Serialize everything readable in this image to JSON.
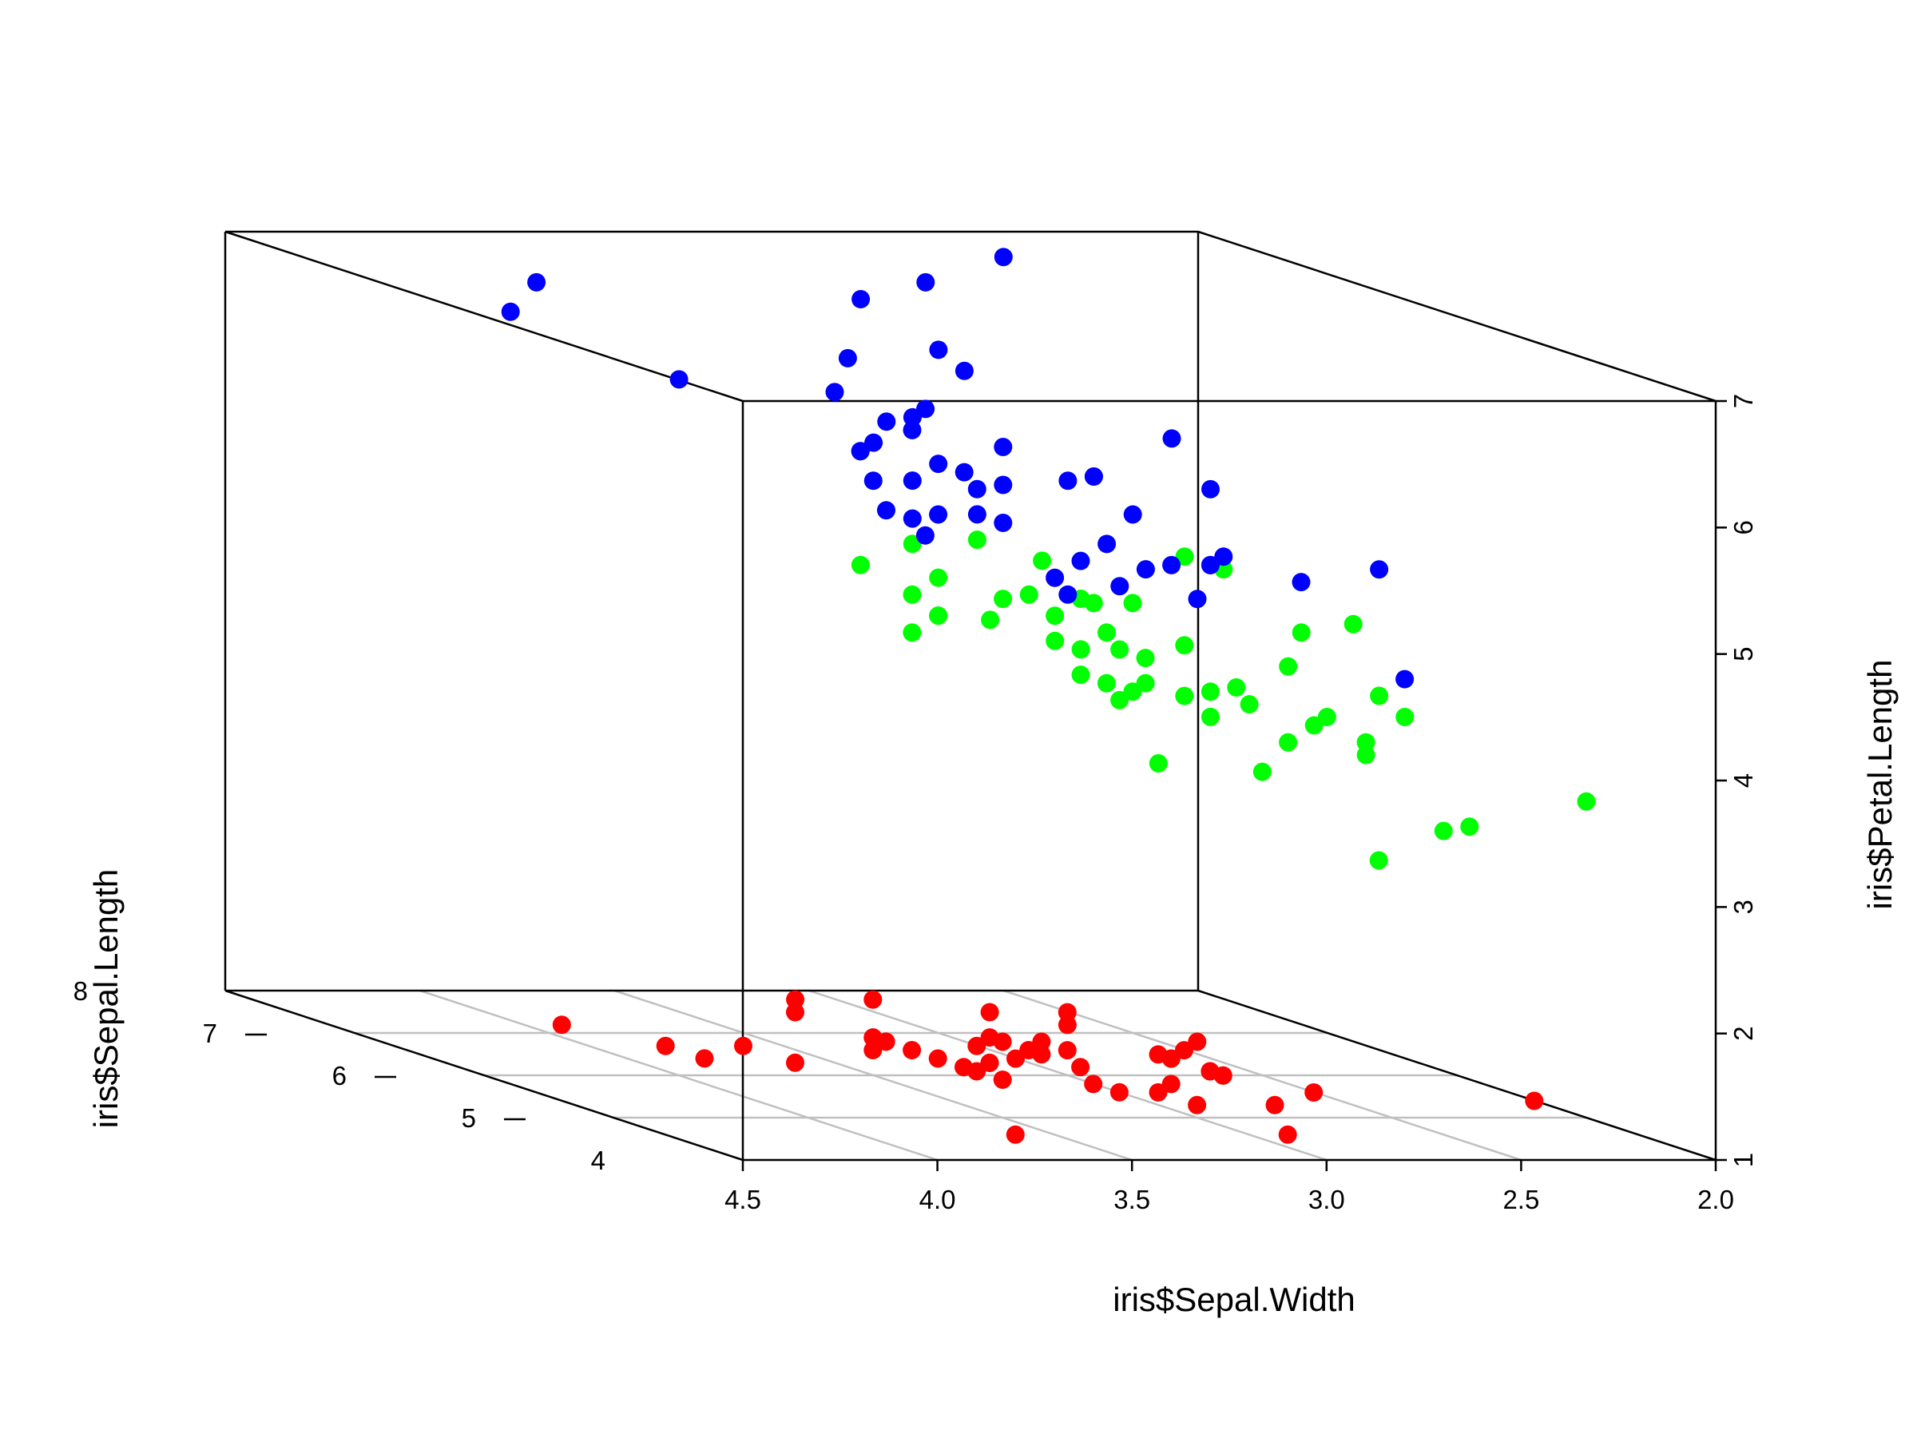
{
  "chart_data": {
    "type": "scatter",
    "subtype": "3d-scatter",
    "title": "",
    "xlabel": "iris$Sepal.Width",
    "ylabel": "iris$Sepal.Length",
    "zlabel": "iris$Petal.Length",
    "xlim": [
      2.0,
      4.5
    ],
    "ylim": [
      4,
      8
    ],
    "zlim": [
      1,
      7
    ],
    "x_ticks": [
      "4.5",
      "4.0",
      "3.5",
      "3.0",
      "2.5",
      "2.0"
    ],
    "y_ticks": [
      "4",
      "5",
      "6",
      "7",
      "8"
    ],
    "z_ticks": [
      "1",
      "2",
      "3",
      "4",
      "5",
      "6",
      "7"
    ],
    "grid": true,
    "grid_plane": "bottom",
    "legend": "none",
    "series": [
      {
        "color": "#ff0000",
        "points": [
          [
            3.5,
            5.1,
            1.4
          ],
          [
            3.0,
            4.9,
            1.4
          ],
          [
            3.2,
            4.7,
            1.3
          ],
          [
            3.1,
            4.6,
            1.5
          ],
          [
            3.6,
            5.0,
            1.4
          ],
          [
            3.9,
            5.4,
            1.7
          ],
          [
            3.4,
            4.6,
            1.4
          ],
          [
            3.4,
            5.0,
            1.5
          ],
          [
            2.9,
            4.4,
            1.4
          ],
          [
            3.1,
            4.9,
            1.5
          ],
          [
            3.7,
            5.4,
            1.5
          ],
          [
            3.4,
            4.8,
            1.6
          ],
          [
            3.0,
            4.8,
            1.4
          ],
          [
            3.0,
            4.3,
            1.1
          ],
          [
            4.0,
            5.8,
            1.2
          ],
          [
            4.4,
            5.7,
            1.5
          ],
          [
            3.9,
            5.4,
            1.3
          ],
          [
            3.5,
            5.1,
            1.4
          ],
          [
            3.8,
            5.7,
            1.7
          ],
          [
            3.8,
            5.1,
            1.5
          ],
          [
            3.4,
            5.4,
            1.7
          ],
          [
            3.7,
            5.1,
            1.5
          ],
          [
            3.6,
            4.6,
            1.0
          ],
          [
            3.3,
            5.1,
            1.7
          ],
          [
            3.4,
            4.8,
            1.9
          ],
          [
            3.0,
            5.0,
            1.6
          ],
          [
            3.4,
            5.0,
            1.6
          ],
          [
            3.5,
            5.2,
            1.5
          ],
          [
            3.4,
            5.2,
            1.4
          ],
          [
            3.2,
            4.7,
            1.6
          ],
          [
            3.1,
            4.8,
            1.6
          ],
          [
            3.4,
            5.4,
            1.5
          ],
          [
            4.1,
            5.2,
            1.5
          ],
          [
            4.2,
            5.5,
            1.4
          ],
          [
            3.1,
            4.9,
            1.5
          ],
          [
            3.2,
            5.0,
            1.2
          ],
          [
            3.5,
            5.5,
            1.3
          ],
          [
            3.6,
            4.9,
            1.4
          ],
          [
            3.0,
            4.4,
            1.3
          ],
          [
            3.4,
            5.1,
            1.5
          ],
          [
            3.5,
            5.0,
            1.3
          ],
          [
            2.3,
            4.5,
            1.3
          ],
          [
            3.2,
            4.4,
            1.3
          ],
          [
            3.5,
            5.0,
            1.6
          ],
          [
            3.8,
            5.1,
            1.9
          ],
          [
            3.0,
            4.8,
            1.4
          ],
          [
            3.8,
            5.1,
            1.6
          ],
          [
            3.2,
            4.6,
            1.4
          ],
          [
            3.7,
            5.3,
            1.5
          ],
          [
            3.3,
            5.0,
            1.4
          ]
        ]
      },
      {
        "color": "#00ff00",
        "points": [
          [
            3.2,
            7.0,
            4.7
          ],
          [
            3.2,
            6.4,
            4.5
          ],
          [
            3.1,
            6.9,
            4.9
          ],
          [
            2.3,
            5.5,
            4.0
          ],
          [
            2.8,
            6.5,
            4.6
          ],
          [
            2.8,
            5.7,
            4.5
          ],
          [
            3.3,
            6.3,
            4.7
          ],
          [
            2.4,
            4.9,
            3.3
          ],
          [
            2.9,
            6.6,
            4.6
          ],
          [
            2.7,
            5.2,
            3.9
          ],
          [
            2.0,
            5.0,
            3.5
          ],
          [
            3.0,
            5.9,
            4.2
          ],
          [
            2.2,
            6.0,
            4.0
          ],
          [
            2.9,
            6.1,
            4.7
          ],
          [
            2.9,
            5.6,
            3.6
          ],
          [
            3.1,
            6.7,
            4.4
          ],
          [
            3.0,
            5.6,
            4.5
          ],
          [
            2.7,
            5.8,
            4.1
          ],
          [
            2.2,
            6.2,
            4.5
          ],
          [
            2.5,
            5.6,
            3.9
          ],
          [
            3.2,
            5.9,
            4.8
          ],
          [
            2.8,
            6.1,
            4.0
          ],
          [
            2.5,
            6.3,
            4.9
          ],
          [
            2.8,
            6.1,
            4.7
          ],
          [
            2.9,
            6.4,
            4.3
          ],
          [
            3.0,
            6.6,
            4.4
          ],
          [
            2.8,
            6.8,
            4.8
          ],
          [
            3.0,
            6.7,
            5.0
          ],
          [
            2.9,
            6.0,
            4.5
          ],
          [
            2.6,
            5.7,
            3.5
          ],
          [
            2.4,
            5.5,
            3.8
          ],
          [
            2.4,
            5.5,
            3.7
          ],
          [
            2.7,
            5.8,
            3.9
          ],
          [
            2.7,
            6.0,
            5.1
          ],
          [
            3.0,
            5.4,
            4.5
          ],
          [
            3.4,
            6.0,
            4.5
          ],
          [
            3.1,
            6.7,
            4.7
          ],
          [
            2.3,
            6.3,
            4.4
          ],
          [
            3.0,
            5.6,
            4.1
          ],
          [
            2.5,
            5.5,
            4.0
          ],
          [
            2.6,
            5.5,
            4.4
          ],
          [
            3.0,
            6.1,
            4.6
          ],
          [
            2.6,
            5.8,
            4.0
          ],
          [
            2.3,
            5.0,
            3.3
          ],
          [
            2.7,
            5.6,
            4.2
          ],
          [
            3.0,
            5.7,
            4.2
          ],
          [
            2.9,
            5.7,
            4.2
          ],
          [
            2.9,
            6.2,
            4.3
          ],
          [
            2.5,
            5.1,
            3.0
          ],
          [
            2.8,
            5.7,
            4.1
          ]
        ]
      },
      {
        "color": "#0000ff",
        "points": [
          [
            3.3,
            6.3,
            6.0
          ],
          [
            2.7,
            5.8,
            5.1
          ],
          [
            3.0,
            7.1,
            5.9
          ],
          [
            2.9,
            6.3,
            5.6
          ],
          [
            3.0,
            6.5,
            5.8
          ],
          [
            3.0,
            7.6,
            6.6
          ],
          [
            2.5,
            4.9,
            4.5
          ],
          [
            2.9,
            7.3,
            6.3
          ],
          [
            2.5,
            6.7,
            5.8
          ],
          [
            3.6,
            7.2,
            6.1
          ],
          [
            3.2,
            6.5,
            5.1
          ],
          [
            2.7,
            6.4,
            5.3
          ],
          [
            3.0,
            6.8,
            5.5
          ],
          [
            2.5,
            5.7,
            5.0
          ],
          [
            2.8,
            5.8,
            5.1
          ],
          [
            3.2,
            6.4,
            5.3
          ],
          [
            3.0,
            6.5,
            5.5
          ],
          [
            3.8,
            7.7,
            6.7
          ],
          [
            2.6,
            7.7,
            6.9
          ],
          [
            2.2,
            6.0,
            5.0
          ],
          [
            3.2,
            6.9,
            5.7
          ],
          [
            2.8,
            5.6,
            4.9
          ],
          [
            2.8,
            7.7,
            6.7
          ],
          [
            2.7,
            6.3,
            4.9
          ],
          [
            3.3,
            6.7,
            5.7
          ],
          [
            3.2,
            7.2,
            6.0
          ],
          [
            2.8,
            6.2,
            4.8
          ],
          [
            3.0,
            6.1,
            4.9
          ],
          [
            2.8,
            6.4,
            5.6
          ],
          [
            3.0,
            7.2,
            5.8
          ],
          [
            2.8,
            7.4,
            6.1
          ],
          [
            3.8,
            7.9,
            6.4
          ],
          [
            2.8,
            6.4,
            5.6
          ],
          [
            2.8,
            6.3,
            5.1
          ],
          [
            2.6,
            6.1,
            5.6
          ],
          [
            3.0,
            7.7,
            6.1
          ],
          [
            3.4,
            6.3,
            5.6
          ],
          [
            3.1,
            6.4,
            5.5
          ],
          [
            3.0,
            6.0,
            4.8
          ],
          [
            3.1,
            6.9,
            5.4
          ],
          [
            3.1,
            6.7,
            5.6
          ],
          [
            3.1,
            6.9,
            5.1
          ],
          [
            2.7,
            5.8,
            5.1
          ],
          [
            3.2,
            6.8,
            5.9
          ],
          [
            3.3,
            6.7,
            5.7
          ],
          [
            3.0,
            6.7,
            5.2
          ],
          [
            2.5,
            6.3,
            5.0
          ],
          [
            3.0,
            6.5,
            5.2
          ],
          [
            3.4,
            6.2,
            5.4
          ],
          [
            3.0,
            5.9,
            5.1
          ]
        ]
      }
    ]
  }
}
